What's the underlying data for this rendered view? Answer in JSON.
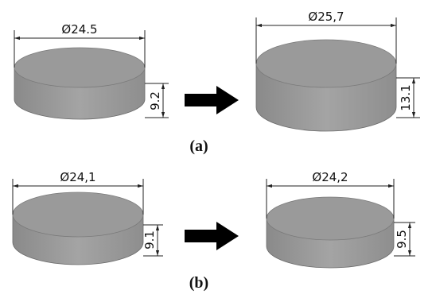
{
  "panels": [
    {
      "label": "(a)",
      "before": {
        "diameter": "Ø24.5",
        "height": "9.2"
      },
      "after": {
        "diameter": "Ø25,7",
        "height": "13.1"
      }
    },
    {
      "label": "(b)",
      "before": {
        "diameter": "Ø24,1",
        "height": "9.1"
      },
      "after": {
        "diameter": "Ø24,2",
        "height": "9.5"
      }
    }
  ]
}
